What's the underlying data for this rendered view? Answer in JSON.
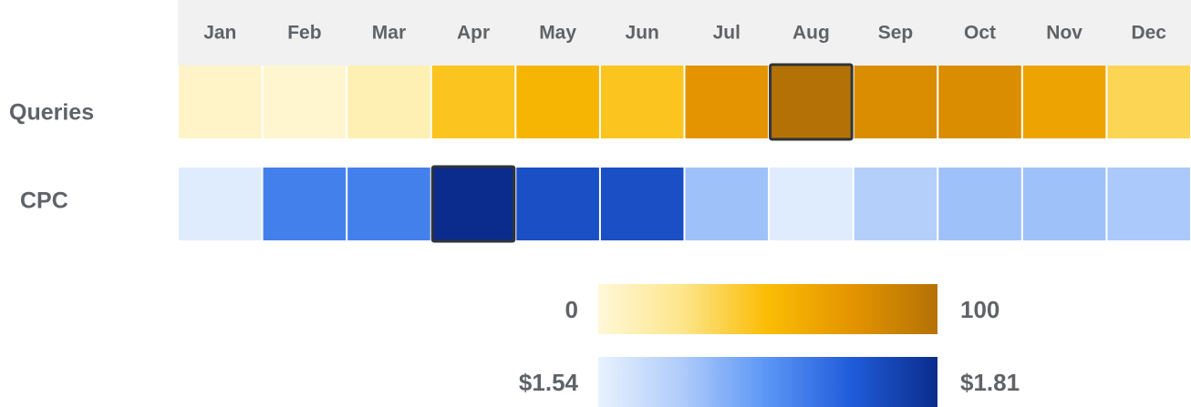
{
  "chart_data": {
    "type": "heatmap",
    "categories": [
      "Jan",
      "Feb",
      "Mar",
      "Apr",
      "May",
      "Jun",
      "Jul",
      "Aug",
      "Sep",
      "Oct",
      "Nov",
      "Dec"
    ],
    "series": [
      {
        "name": "Queries",
        "values": [
          5,
          3,
          12,
          45,
          55,
          45,
          75,
          100,
          80,
          80,
          65,
          35
        ],
        "vlim": [
          0,
          100
        ],
        "colors": [
          "#fff8d8",
          "#fde58a",
          "#fbbc04",
          "#e39400",
          "#b47206"
        ]
      },
      {
        "name": "CPC",
        "values": [
          1.55,
          1.7,
          1.7,
          1.81,
          1.76,
          1.76,
          1.62,
          1.55,
          1.6,
          1.62,
          1.62,
          1.61
        ],
        "vlim": [
          {
            "value": 1.54,
            "label": "$1.54"
          },
          {
            "value": 1.81,
            "label": "$1.81"
          }
        ],
        "colors": [
          "#e8f2fe",
          "#aecbfa",
          "#5a95f5",
          "#1f5bd9",
          "#0b2c8c"
        ]
      }
    ]
  }
}
